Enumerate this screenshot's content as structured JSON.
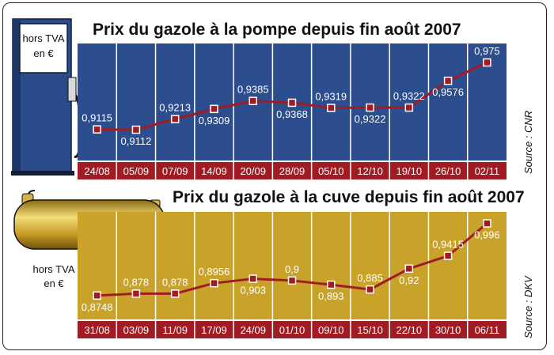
{
  "chart_data": [
    {
      "type": "line",
      "title": "Prix du gazole à la pompe depuis fin août 2007",
      "unit_label": "hors TVA en €",
      "source": "Source : CNR",
      "categories": [
        "24/08",
        "05/09",
        "07/09",
        "14/09",
        "20/09",
        "28/09",
        "05/10",
        "12/10",
        "19/10",
        "26/10",
        "02/11"
      ],
      "values": [
        0.9115,
        0.9112,
        0.9213,
        0.9309,
        0.9385,
        0.9368,
        0.9319,
        0.9322,
        0.9322,
        0.9576,
        0.975
      ],
      "value_labels": [
        "0,9115",
        "0,9112",
        "0,9213",
        "0,9309",
        "0,9385",
        "0,9368",
        "0,9319",
        "0,9322",
        "0,9322",
        "0,9576",
        "0,975"
      ],
      "label_positions": [
        "above",
        "below",
        "above",
        "below",
        "above",
        "below",
        "above",
        "below",
        "above",
        "below",
        "above"
      ],
      "ylim": [
        0.885,
        0.99
      ],
      "colors": {
        "panel": "#2c4d8e",
        "panel_dark": "#1f3a70",
        "line": "#a01c22",
        "date_bar": "#a01c22"
      }
    },
    {
      "type": "line",
      "title": "Prix du gazole à la cuve depuis fin août 2007",
      "unit_label": "hors TVA en €",
      "source": "Source : DKV",
      "categories": [
        "31/08",
        "03/09",
        "11/09",
        "17/09",
        "24/09",
        "01/10",
        "09/10",
        "15/10",
        "22/10",
        "30/10",
        "06/11"
      ],
      "values": [
        0.8748,
        0.878,
        0.878,
        0.8956,
        0.903,
        0.9,
        0.893,
        0.885,
        0.92,
        0.9415,
        0.996
      ],
      "value_labels": [
        "0,8748",
        "0,878",
        "0,878",
        "0,8956",
        "0,903",
        "0,9",
        "0,893",
        "0,885",
        "0,92",
        "0,9415",
        "0,996"
      ],
      "label_positions": [
        "below",
        "above",
        "above",
        "above",
        "below",
        "above",
        "below",
        "above",
        "below",
        "above",
        "below"
      ],
      "ylim": [
        0.84,
        1.01
      ],
      "colors": {
        "panel": "#c9a22a",
        "panel_dark": "#a8841c",
        "line": "#a01c22",
        "date_bar": "#a01c22"
      }
    }
  ]
}
